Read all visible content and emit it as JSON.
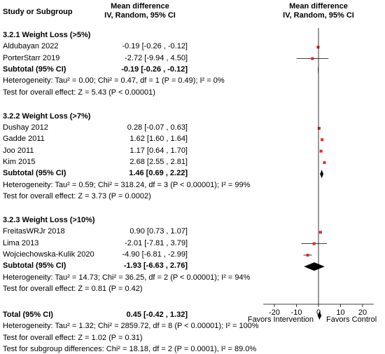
{
  "header": {
    "col_study": "Study or Subgroup",
    "col_md_title": "Mean difference",
    "col_md_sub": "IV, Random, 95% CI",
    "col_plot_title": "Mean difference",
    "col_plot_sub": "IV, Random, 95% CI"
  },
  "chart_data": {
    "type": "forest",
    "xlim": [
      -25,
      25
    ],
    "ticks": [
      -20,
      -10,
      0,
      10,
      20
    ],
    "tick_labels": [
      "-20",
      "-10",
      "0",
      "10",
      "20"
    ],
    "favors_left": "Favors Intervention",
    "favors_right": "Favors Control",
    "subgroups": [
      {
        "title": "3.2.1 Weight Loss (>5%)",
        "studies": [
          {
            "name": "Aldubayan 2022",
            "ci_text": "-0.19 [-0.26 , -0.12]",
            "md": -0.19,
            "lo": -0.26,
            "hi": -0.12
          },
          {
            "name": "PorterStarr 2019",
            "ci_text": "-2.72 [-9.94 , 4.50]",
            "md": -2.72,
            "lo": -9.94,
            "hi": 4.5
          }
        ],
        "subtotal": {
          "label": "Subtotal (95% CI)",
          "ci_text": "-0.19 [-0.26 , -0.12]",
          "md": -0.19,
          "lo": -0.26,
          "hi": -0.12
        },
        "heterogeneity": "Heterogeneity: Tau² = 0.00; Chi² = 0.47, df = 1 (P = 0.49); I² = 0%",
        "overall_test": "Test for overall effect: Z = 5.43 (P < 0.00001)"
      },
      {
        "title": "3.2.2 Weight Loss (>7%)",
        "studies": [
          {
            "name": "Dushay 2012",
            "ci_text": "0.28 [-0.07 , 0.63]",
            "md": 0.28,
            "lo": -0.07,
            "hi": 0.63
          },
          {
            "name": "Gadde 2011",
            "ci_text": "1.62 [1.60 , 1.64]",
            "md": 1.62,
            "lo": 1.6,
            "hi": 1.64
          },
          {
            "name": "Joo 2011",
            "ci_text": "1.17 [0.64 , 1.70]",
            "md": 1.17,
            "lo": 0.64,
            "hi": 1.7
          },
          {
            "name": "Kim 2015",
            "ci_text": "2.68 [2.55 , 2.81]",
            "md": 2.68,
            "lo": 2.55,
            "hi": 2.81
          }
        ],
        "subtotal": {
          "label": "Subtotal (95% CI)",
          "ci_text": "1.46 [0.69 , 2.22]",
          "md": 1.46,
          "lo": 0.69,
          "hi": 2.22
        },
        "heterogeneity": "Heterogeneity: Tau² = 0.59; Chi² = 318.24, df = 3 (P < 0.00001); I² = 99%",
        "overall_test": "Test for overall effect: Z = 3.73 (P = 0.0002)"
      },
      {
        "title": "3.2.3 Weight Loss (>10%)",
        "studies": [
          {
            "name": "FreitasWRJr 2018",
            "ci_text": "0.90 [0.73 , 1.07]",
            "md": 0.9,
            "lo": 0.73,
            "hi": 1.07
          },
          {
            "name": "Lima 2013",
            "ci_text": "-2.01 [-7.81 , 3.79]",
            "md": -2.01,
            "lo": -7.81,
            "hi": 3.79
          },
          {
            "name": "Wojciechowska-Kulik 2020",
            "ci_text": "-4.90 [-6.81 , -2.99]",
            "md": -4.9,
            "lo": -6.81,
            "hi": -2.99
          }
        ],
        "subtotal": {
          "label": "Subtotal (95% CI)",
          "ci_text": "-1.93 [-6.63 , 2.76]",
          "md": -1.93,
          "lo": -6.63,
          "hi": 2.76
        },
        "heterogeneity": "Heterogeneity: Tau² = 14.73; Chi² = 36.25, df = 2 (P < 0.00001); I² = 94%",
        "overall_test": "Test for overall effect: Z = 0.81 (P = 0.42)"
      }
    ],
    "total": {
      "label": "Total (95% CI)",
      "ci_text": "0.45 [-0.42 , 1.32]",
      "md": 0.45,
      "lo": -0.42,
      "hi": 1.32,
      "heterogeneity": "Heterogeneity: Tau² = 1.32; Chi² = 2859.72, df = 8 (P < 0.00001); I² = 100%",
      "overall_test": "Test for overall effect: Z = 1.02 (P = 0.31)",
      "subgroup_diff": "Test for subgroup differences: Chi² = 18.18, df = 2 (P = 0.0001), I² = 89.0%"
    },
    "colors": {
      "square": "#e8262a",
      "line": "#000000",
      "diamond": "#000000"
    }
  }
}
